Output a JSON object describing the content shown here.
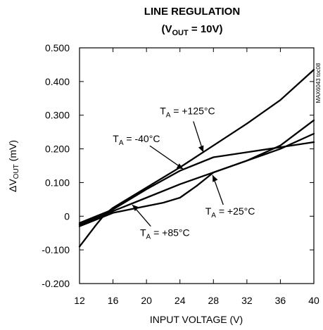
{
  "chart_data": {
    "type": "line",
    "title": "LINE REGULATION",
    "subtitle": {
      "prefix": "(V",
      "sub": "OUT",
      "suffix": " = 10V)"
    },
    "xlabel": "INPUT VOLTAGE (V)",
    "ylabel": {
      "prefix": "ΔV",
      "sub": "OUT",
      "suffix": " (mV)"
    },
    "xlim": [
      12,
      40
    ],
    "ylim": [
      -0.2,
      0.5
    ],
    "x_ticks": [
      "12",
      "16",
      "20",
      "24",
      "28",
      "32",
      "36",
      "40"
    ],
    "y_ticks": [
      "0.500",
      "0.400",
      "0.300",
      "0.200",
      "0.100",
      "0",
      "-0.100",
      "-0.200"
    ],
    "grid": false,
    "series": [
      {
        "x": [
          12,
          14,
          15,
          16,
          20,
          24,
          28,
          32,
          36,
          40
        ],
        "y": [
          -0.09,
          -0.025,
          0.005,
          0.025,
          0.085,
          0.145,
          0.21,
          0.275,
          0.345,
          0.435
        ]
      },
      {
        "x": [
          12,
          16,
          20,
          24,
          28,
          32,
          36,
          40
        ],
        "y": [
          -0.02,
          0.02,
          0.08,
          0.135,
          0.175,
          0.19,
          0.205,
          0.22
        ]
      },
      {
        "x": [
          12,
          16,
          20,
          24,
          28,
          32,
          36,
          40
        ],
        "y": [
          -0.025,
          0.015,
          0.055,
          0.095,
          0.13,
          0.165,
          0.2,
          0.245
        ]
      },
      {
        "x": [
          12,
          16,
          20,
          22,
          24,
          26,
          28,
          32,
          36,
          40
        ],
        "y": [
          -0.03,
          0.01,
          0.03,
          0.04,
          0.055,
          0.09,
          0.13,
          0.165,
          0.21,
          0.285
        ]
      }
    ],
    "annotations": [
      {
        "prefix": "T",
        "sub": "A",
        "suffix": " = +125°C",
        "label_x": 24.9,
        "label_y": 0.305,
        "arrow_to": [
          26.8,
          0.19
        ]
      },
      {
        "prefix": "T",
        "sub": "A",
        "suffix": " = -40°C",
        "label_x": 18.8,
        "label_y": 0.222,
        "arrow_to": [
          24.4,
          0.14
        ]
      },
      {
        "prefix": "T",
        "sub": "A",
        "suffix": " = +25°C",
        "label_x": 30.0,
        "label_y": 0.007,
        "arrow_to": [
          27.9,
          0.122
        ]
      },
      {
        "prefix": "T",
        "sub": "A",
        "suffix": " = +85°C",
        "label_x": 22.2,
        "label_y": -0.057,
        "arrow_to": [
          18.3,
          0.034
        ]
      }
    ],
    "side_label": "MAX6043 toc08"
  }
}
